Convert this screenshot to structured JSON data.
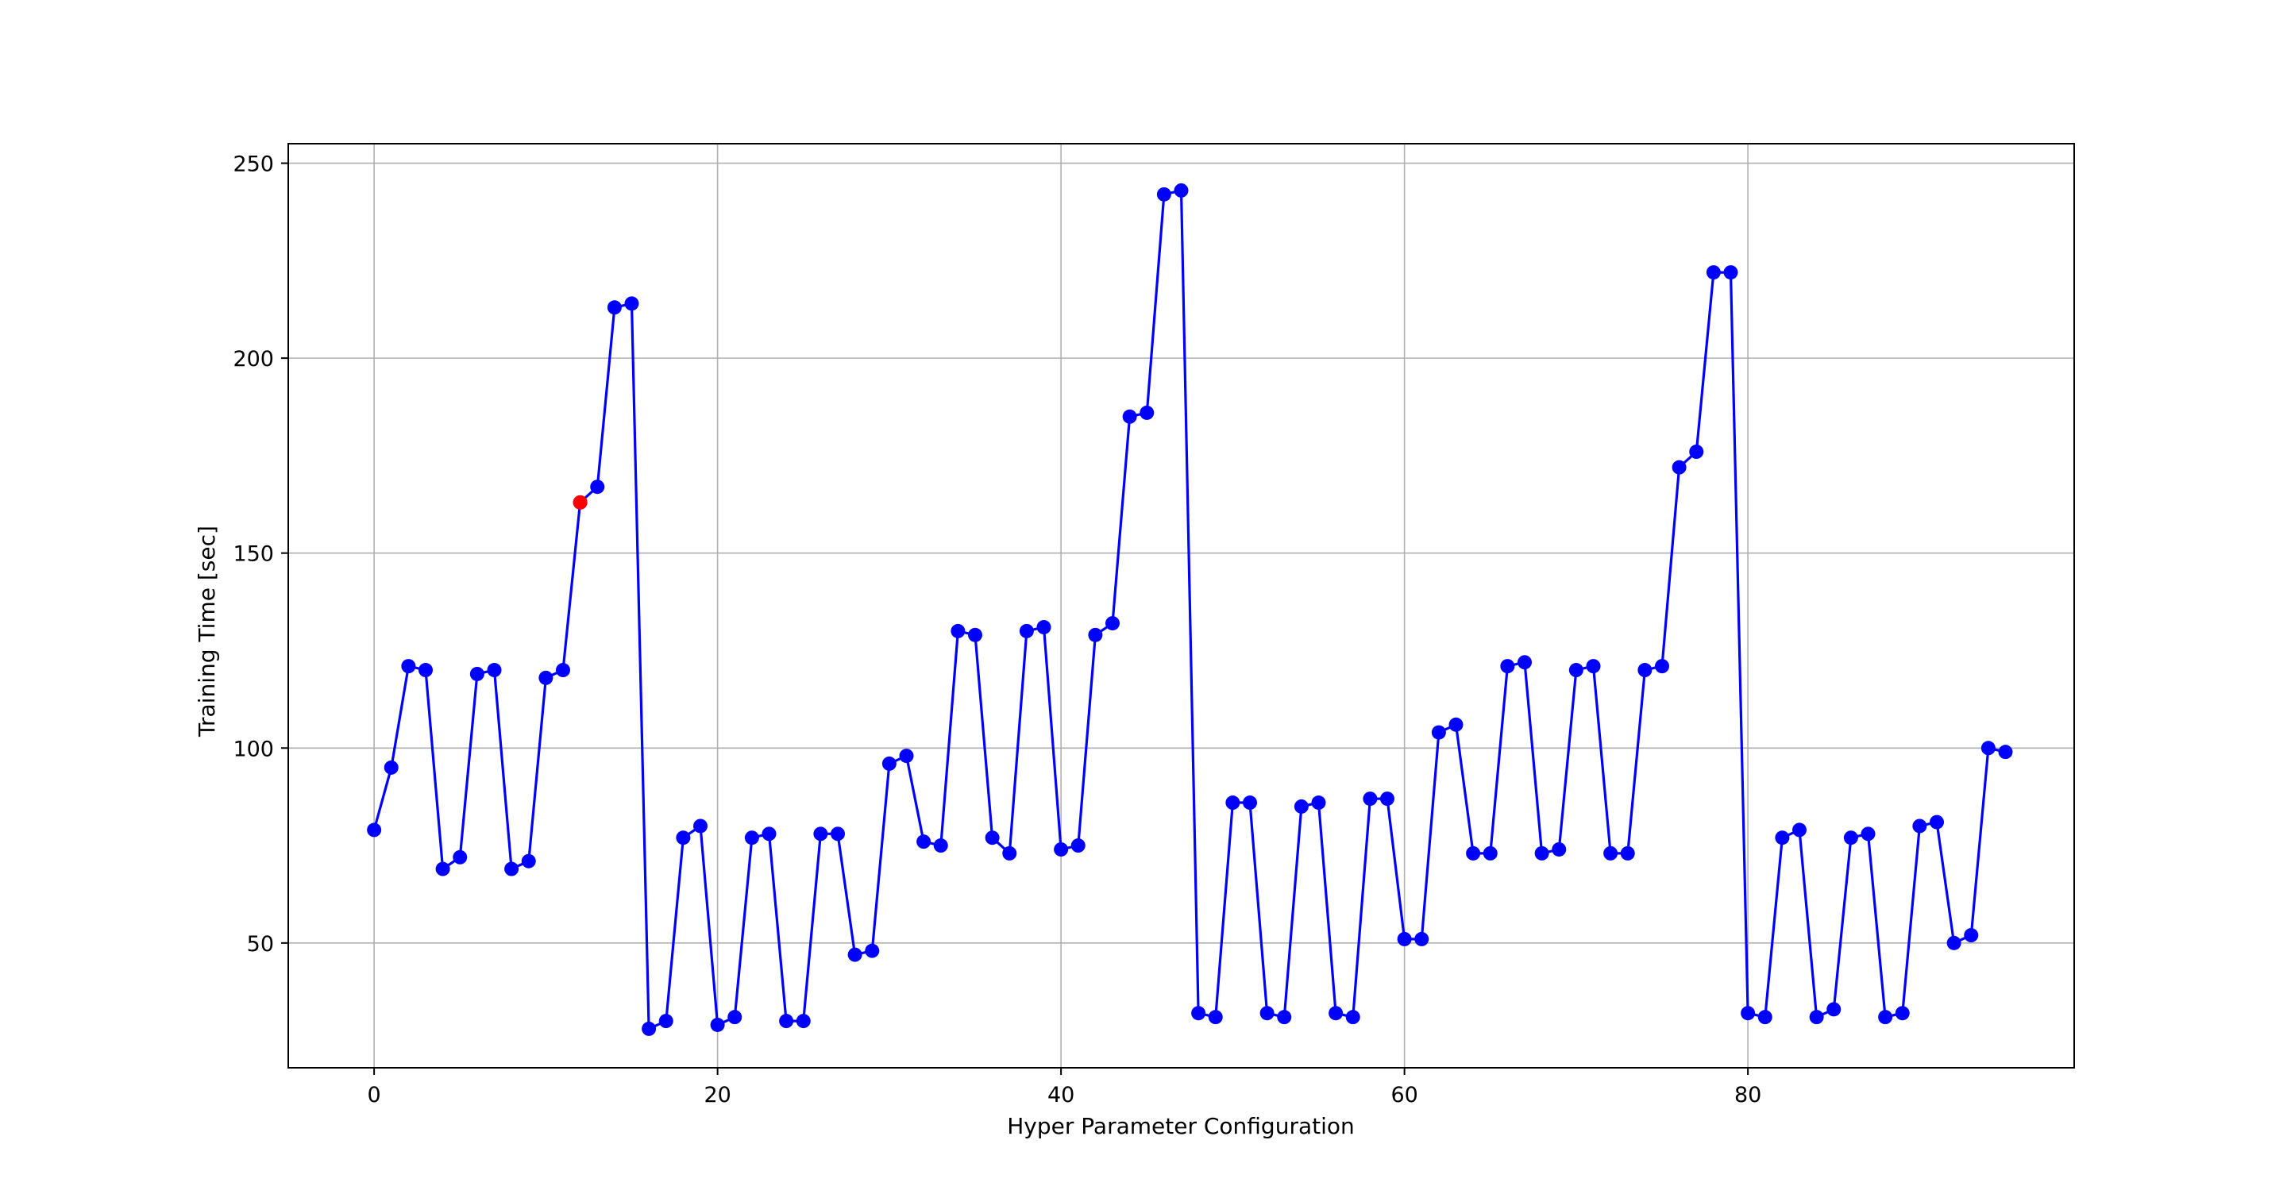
{
  "chart_data": {
    "type": "line",
    "title": "",
    "xlabel": "Hyper Parameter Configuration",
    "ylabel": "Training Time [sec]",
    "xlim": [
      -5,
      99
    ],
    "ylim": [
      18,
      255
    ],
    "xticks": [
      0,
      20,
      40,
      60,
      80
    ],
    "yticks": [
      50,
      100,
      150,
      200,
      250
    ],
    "xtick_labels": [
      "0",
      "20",
      "40",
      "60",
      "80"
    ],
    "ytick_labels": [
      "50",
      "100",
      "150",
      "200",
      "250"
    ],
    "grid": true,
    "series": [
      {
        "color": "#0000ff",
        "x": [
          0,
          1,
          2,
          3,
          4,
          5,
          6,
          7,
          8,
          9,
          10,
          11,
          12,
          13,
          14,
          15,
          16,
          17,
          18,
          19,
          20,
          21,
          22,
          23,
          24,
          25,
          26,
          27,
          28,
          29,
          30,
          31,
          32,
          33,
          34,
          35,
          36,
          37,
          38,
          39,
          40,
          41,
          42,
          43,
          44,
          45,
          46,
          47,
          48,
          49,
          50,
          51,
          52,
          53,
          54,
          55,
          56,
          57,
          58,
          59,
          60,
          61,
          62,
          63,
          64,
          65,
          66,
          67,
          68,
          69,
          70,
          71,
          72,
          73,
          74,
          75,
          76,
          77,
          78,
          79,
          80,
          81,
          82,
          83,
          84,
          85,
          86,
          87,
          88,
          89,
          90,
          91,
          92,
          93,
          94,
          95
        ],
        "y": [
          79,
          95,
          121,
          120,
          69,
          72,
          119,
          120,
          69,
          71,
          118,
          120,
          163,
          167,
          213,
          214,
          28,
          30,
          77,
          80,
          29,
          31,
          77,
          78,
          30,
          30,
          78,
          78,
          47,
          48,
          96,
          98,
          76,
          75,
          130,
          129,
          77,
          73,
          130,
          131,
          74,
          75,
          129,
          132,
          185,
          186,
          242,
          243,
          32,
          31,
          86,
          86,
          32,
          31,
          85,
          86,
          32,
          31,
          87,
          87,
          51,
          51,
          104,
          106,
          73,
          73,
          121,
          122,
          73,
          74,
          120,
          121,
          73,
          73,
          120,
          121,
          172,
          176,
          222,
          222,
          32,
          31,
          77,
          79,
          31,
          33,
          77,
          78,
          31,
          32,
          80,
          81,
          50,
          52,
          100,
          99
        ]
      }
    ],
    "highlight": {
      "x": 12,
      "y": 163,
      "color": "#ff0000"
    }
  }
}
